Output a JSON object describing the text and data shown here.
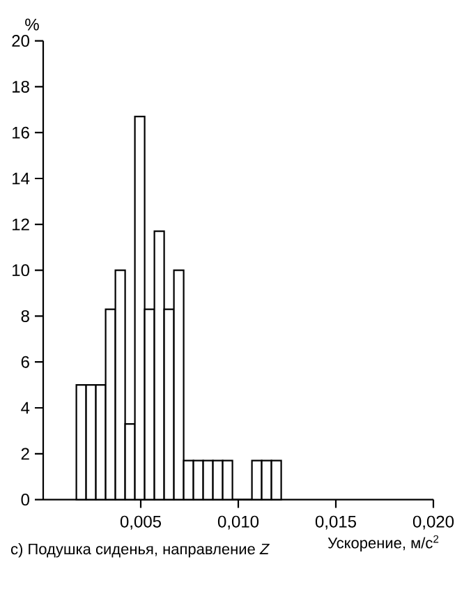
{
  "chart_data": {
    "type": "histogram",
    "bins": [
      0.0017,
      0.0022,
      0.0027,
      0.0032,
      0.0037,
      0.0042,
      0.0047,
      0.0052,
      0.0057,
      0.0062,
      0.0067,
      0.0072,
      0.0077,
      0.0082,
      0.0087,
      0.0092,
      0.0097,
      0.0102,
      0.0107,
      0.0112,
      0.0117,
      0.0122
    ],
    "values": [
      5,
      5,
      5,
      8.3,
      10,
      3.3,
      16.7,
      8.3,
      11.7,
      8.3,
      10,
      1.7,
      1.7,
      1.7,
      1.7,
      1.7,
      0,
      0,
      1.7,
      1.7,
      1.7
    ],
    "color": "#ffffff",
    "xlabel": "Ускорение, м/с$^{2}$",
    "ylabel": "%",
    "xlim": [
      0,
      0.02
    ],
    "ylim": [
      0,
      20
    ],
    "xticks": [
      {
        "value": 0.005,
        "label": "0,005"
      },
      {
        "value": 0.01,
        "label": "0,010"
      },
      {
        "value": 0.015,
        "label": "0,015"
      },
      {
        "value": 0.02,
        "label": "0,020"
      }
    ],
    "yticks": [
      0,
      2,
      4,
      6,
      8,
      10,
      12,
      14,
      16,
      18,
      20
    ],
    "annotations": [
      "с) Подушка сиденья, направление *Z*"
    ]
  }
}
